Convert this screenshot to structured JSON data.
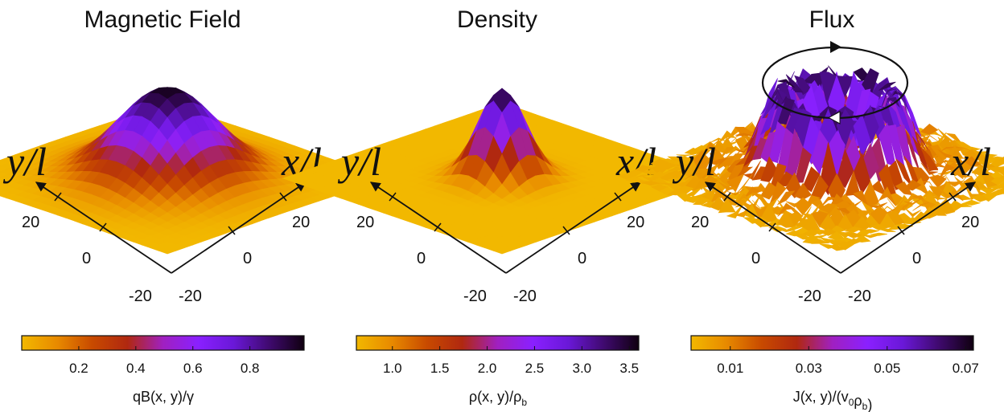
{
  "colors": {
    "colormap": [
      "#f2b800",
      "#e88a00",
      "#c84a00",
      "#b02810",
      "#a020c0",
      "#8a20ff",
      "#6a18d8",
      "#400a70",
      "#100010"
    ],
    "axis": "#111111"
  },
  "chart_data": [
    {
      "type": "surface3d",
      "title": "Magnetic Field",
      "xlabel": "x/l",
      "ylabel": "y/l",
      "xticks": [
        "20",
        "0",
        "-20"
      ],
      "yticks": [
        "20",
        "0",
        "-20"
      ],
      "surface": "single gaussian peak at the center",
      "colorbar": {
        "label_parts": [
          "qB(x, y)/γ"
        ],
        "label_subs": [],
        "ticks": [
          "0.2",
          "0.4",
          "0.6",
          "0.8"
        ],
        "tick_values": [
          0.2,
          0.4,
          0.6,
          0.8
        ],
        "range": [
          0.0,
          0.99
        ]
      }
    },
    {
      "type": "surface3d",
      "title": "Density",
      "xlabel": "x/l",
      "ylabel": "y/l",
      "xticks": [
        "20",
        "0",
        "-20"
      ],
      "yticks": [
        "20",
        "0",
        "-20"
      ],
      "surface": "narrow peak at the center",
      "colorbar": {
        "label_parts": [
          "ρ(x, y)/ρ",
          ""
        ],
        "label_subs": [
          "b"
        ],
        "ticks": [
          "1.0",
          "1.5",
          "2.0",
          "2.5",
          "3.0",
          "3.5"
        ],
        "tick_values": [
          1.0,
          1.5,
          2.0,
          2.5,
          3.0,
          3.5
        ],
        "range": [
          0.62,
          3.6
        ]
      }
    },
    {
      "type": "surface3d",
      "title": "Flux",
      "xlabel": "x/l",
      "ylabel": "y/l",
      "xticks": [
        "20",
        "0",
        "-20"
      ],
      "yticks": [
        "20",
        "0",
        "-20"
      ],
      "surface": "noisy ring around the center, circulating flow",
      "colorbar": {
        "label_parts": [
          "J(x, y)/(v",
          "ρ",
          ")"
        ],
        "label_subs": [
          "0",
          "b"
        ],
        "ticks": [
          "0.01",
          "0.03",
          "0.05",
          "0.07"
        ],
        "tick_values": [
          0.01,
          0.03,
          0.05,
          0.07
        ],
        "range": [
          0.0,
          0.072
        ]
      }
    }
  ]
}
